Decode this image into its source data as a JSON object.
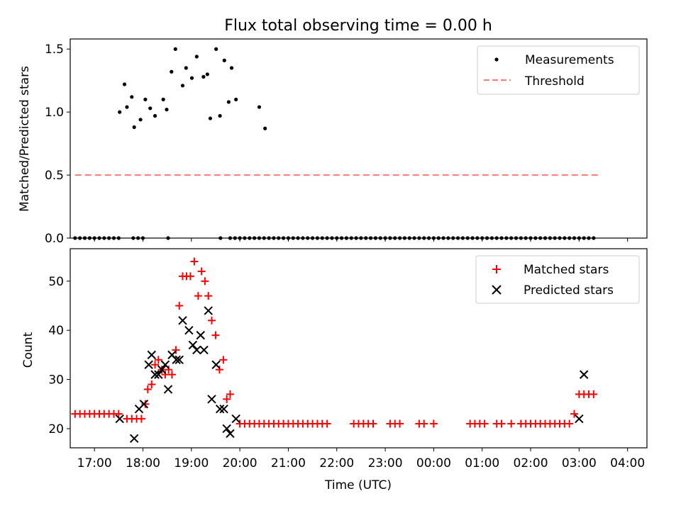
{
  "colors": {
    "measurement": "#000000",
    "threshold": "#ff7f7f",
    "matched": "#ff0000",
    "predicted": "#000000",
    "axis": "#000000",
    "legend_border": "#cccccc"
  },
  "chart_data": [
    {
      "id": "top",
      "type": "scatter",
      "title": "Flux total observing time = 0.00 h",
      "xlabel": "",
      "ylabel": "Matched/Predicted stars",
      "xlim": [
        -0.3,
        11.6
      ],
      "ylim": [
        0,
        1.58
      ],
      "yticks": [
        0.0,
        0.5,
        1.0,
        1.5
      ],
      "ytick_labels": [
        "0.0",
        "0.5",
        "1.0",
        "1.5"
      ],
      "legend_position": "top-right",
      "legend": [
        {
          "label": "Measurements",
          "marker": "dot"
        },
        {
          "label": "Threshold",
          "marker": "dash"
        }
      ],
      "threshold": {
        "name": "Threshold",
        "y": 0.5,
        "x": [
          -0.2,
          10.6
        ]
      },
      "series": [
        {
          "name": "Measurements",
          "x": [
            -0.2,
            -0.1,
            0.0,
            0.1,
            0.2,
            0.3,
            0.4,
            0.5,
            0.6,
            0.7,
            1.0,
            1.1,
            1.2,
            1.72,
            2.8,
            3.0,
            3.1,
            3.2,
            3.3,
            3.4,
            3.5,
            3.6,
            3.7,
            3.8,
            3.9,
            4.0,
            4.1,
            4.2,
            4.3,
            4.4,
            4.5,
            4.6,
            4.7,
            4.8,
            4.9,
            5.0,
            5.1,
            5.2,
            5.3,
            5.4,
            5.5,
            5.6,
            5.7,
            5.8,
            5.9,
            6.0,
            6.1,
            6.2,
            6.3,
            6.4,
            6.5,
            6.6,
            6.7,
            6.8,
            6.9,
            7.0,
            7.1,
            7.2,
            7.3,
            7.4,
            7.5,
            7.6,
            7.7,
            7.8,
            7.9,
            8.0,
            8.1,
            8.2,
            8.3,
            8.4,
            8.5,
            8.6,
            8.7,
            8.8,
            8.9,
            9.0,
            9.1,
            9.2,
            9.3,
            9.4,
            9.5,
            9.6,
            9.7,
            9.8,
            9.9,
            10.0,
            10.1,
            10.2,
            10.3,
            10.4,
            10.5,
            0.72,
            0.82,
            0.87,
            0.97,
            1.02,
            1.15,
            1.25,
            1.35,
            1.45,
            1.62,
            1.69,
            1.79,
            1.87,
            2.02,
            2.09,
            2.21,
            2.31,
            2.45,
            2.53,
            2.59,
            2.71,
            2.79,
            2.88,
            2.97,
            3.03,
            3.12,
            3.6,
            3.72
          ],
          "y": [
            0,
            0,
            0,
            0,
            0,
            0,
            0,
            0,
            0,
            0,
            0,
            0,
            0,
            0,
            0,
            0,
            0,
            0,
            0,
            0,
            0,
            0,
            0,
            0,
            0,
            0,
            0,
            0,
            0,
            0,
            0,
            0,
            0,
            0,
            0,
            0,
            0,
            0,
            0,
            0,
            0,
            0,
            0,
            0,
            0,
            0,
            0,
            0,
            0,
            0,
            0,
            0,
            0,
            0,
            0,
            0,
            0,
            0,
            0,
            0,
            0,
            0,
            0,
            0,
            0,
            0,
            0,
            0,
            0,
            0,
            0,
            0,
            0,
            0,
            0,
            0,
            0,
            0,
            0,
            0,
            0,
            0,
            0,
            0,
            0,
            0,
            0,
            0,
            0,
            0,
            0,
            1.0,
            1.22,
            1.04,
            1.12,
            0.88,
            0.94,
            1.1,
            1.03,
            0.97,
            1.1,
            1.02,
            1.32,
            1.5,
            1.21,
            1.35,
            1.27,
            1.44,
            1.28,
            1.3,
            0.95,
            1.5,
            0.97,
            1.41,
            1.08,
            1.35,
            1.1,
            1.04,
            0.87
          ]
        }
      ]
    },
    {
      "id": "bottom",
      "type": "scatter",
      "title": "",
      "xlabel": "Time (UTC)",
      "ylabel": "Count",
      "xlim": [
        -0.3,
        11.6
      ],
      "ylim": [
        16.1,
        56.6
      ],
      "yticks": [
        20,
        30,
        40,
        50
      ],
      "ytick_labels": [
        "20",
        "30",
        "40",
        "50"
      ],
      "xticks": [
        0.2,
        1.2,
        2.2,
        3.2,
        4.2,
        5.2,
        6.2,
        7.2,
        8.2,
        9.2,
        10.2,
        11.2
      ],
      "xtick_labels": [
        "17:00",
        "18:00",
        "19:00",
        "20:00",
        "21:00",
        "22:00",
        "23:00",
        "00:00",
        "01:00",
        "02:00",
        "03:00",
        "04:00"
      ],
      "legend_position": "top-right",
      "legend": [
        {
          "label": "Matched stars",
          "marker": "plus"
        },
        {
          "label": "Predicted stars",
          "marker": "x"
        }
      ],
      "series": [
        {
          "name": "Matched stars",
          "x": [
            -0.2,
            -0.1,
            0.0,
            0.1,
            0.2,
            0.3,
            0.4,
            0.5,
            0.6,
            0.7,
            0.87,
            0.97,
            1.07,
            1.17,
            1.25,
            1.3,
            1.38,
            1.45,
            1.52,
            1.59,
            1.66,
            1.73,
            1.8,
            1.88,
            1.95,
            2.02,
            2.1,
            2.18,
            2.26,
            2.34,
            2.41,
            2.48,
            2.55,
            2.62,
            2.7,
            2.78,
            2.86,
            2.93,
            3.0,
            3.2,
            3.3,
            3.4,
            3.5,
            3.6,
            3.7,
            3.8,
            3.9,
            4.0,
            4.1,
            4.2,
            4.3,
            4.4,
            4.5,
            4.6,
            4.7,
            4.8,
            4.9,
            5.0,
            5.55,
            5.65,
            5.75,
            5.85,
            5.95,
            6.3,
            6.4,
            6.5,
            6.9,
            7.0,
            7.2,
            7.95,
            8.05,
            8.15,
            8.25,
            8.5,
            8.6,
            8.8,
            9.0,
            9.1,
            9.2,
            9.3,
            9.4,
            9.5,
            9.6,
            9.7,
            9.8,
            9.9,
            10.0,
            10.1,
            10.2,
            10.3,
            10.4,
            10.5
          ],
          "y": [
            23,
            23,
            23,
            23,
            23,
            23,
            23,
            23,
            23,
            23,
            22,
            22,
            22,
            22,
            25,
            28,
            29,
            33,
            34,
            32,
            31,
            32,
            31,
            36,
            45,
            51,
            51,
            51,
            54,
            47,
            52,
            50,
            47,
            42,
            39,
            32,
            34,
            26,
            27,
            21,
            21,
            21,
            21,
            21,
            21,
            21,
            21,
            21,
            21,
            21,
            21,
            21,
            21,
            21,
            21,
            21,
            21,
            21,
            21,
            21,
            21,
            21,
            21,
            21,
            21,
            21,
            21,
            21,
            21,
            21,
            21,
            21,
            21,
            21,
            21,
            21,
            21,
            21,
            21,
            21,
            21,
            21,
            21,
            21,
            21,
            21,
            21,
            23,
            27,
            27,
            27,
            27
          ]
        },
        {
          "name": "Predicted stars",
          "x": [
            0.72,
            1.02,
            1.12,
            1.22,
            1.32,
            1.38,
            1.45,
            1.52,
            1.59,
            1.66,
            1.72,
            1.8,
            1.89,
            1.95,
            2.02,
            2.15,
            2.23,
            2.31,
            2.39,
            2.46,
            2.55,
            2.62,
            2.71,
            2.79,
            2.87,
            2.93,
            3.0,
            3.12,
            10.2,
            10.3
          ],
          "y": [
            22,
            18,
            24,
            25,
            33,
            35,
            31,
            31,
            32,
            33,
            28,
            35,
            34,
            34,
            42,
            40,
            37,
            36,
            39,
            36,
            44,
            26,
            33,
            24,
            24,
            20,
            19,
            22,
            22,
            31
          ]
        }
      ]
    }
  ]
}
